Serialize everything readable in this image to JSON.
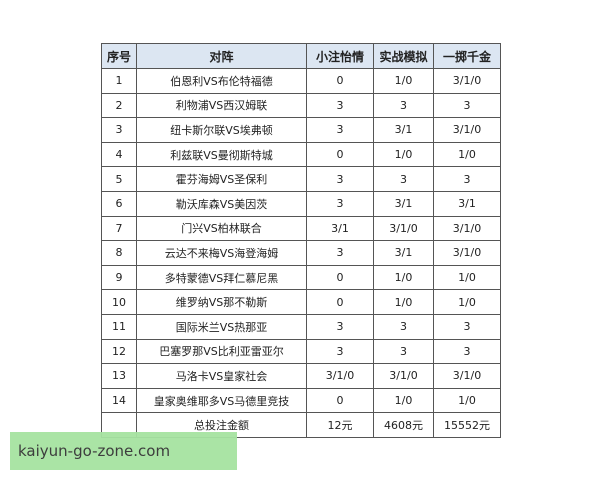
{
  "headers": [
    "序号",
    "对阵",
    "小注怡情",
    "实战模拟",
    "一掷千金"
  ],
  "rows": [
    [
      "1",
      "伯恩利VS布伦特福德",
      "0",
      "1/0",
      "3/1/0"
    ],
    [
      "2",
      "利物浦VS西汉姆联",
      "3",
      "3",
      "3"
    ],
    [
      "3",
      "纽卡斯尔联VS埃弗顿",
      "3",
      "3/1",
      "3/1/0"
    ],
    [
      "4",
      "利兹联VS曼彻斯特城",
      "0",
      "1/0",
      "1/0"
    ],
    [
      "5",
      "霍芬海姆VS圣保利",
      "3",
      "3",
      "3"
    ],
    [
      "6",
      "勒沃库森VS美因茨",
      "3",
      "3/1",
      "3/1"
    ],
    [
      "7",
      "门兴VS柏林联合",
      "3/1",
      "3/1/0",
      "3/1/0"
    ],
    [
      "8",
      "云达不来梅VS海登海姆",
      "3",
      "3/1",
      "3/1/0"
    ],
    [
      "9",
      "多特蒙德VS拜仁慕尼黑",
      "0",
      "1/0",
      "1/0"
    ],
    [
      "10",
      "维罗纳VS那不勒斯",
      "0",
      "1/0",
      "1/0"
    ],
    [
      "11",
      "国际米兰VS热那亚",
      "3",
      "3",
      "3"
    ],
    [
      "12",
      "巴塞罗那VS比利亚雷亚尔",
      "3",
      "3",
      "3"
    ],
    [
      "13",
      "马洛卡VS皇家社会",
      "3/1/0",
      "3/1/0",
      "3/1/0"
    ],
    [
      "14",
      "皇家奥维耶多VS马德里竞技",
      "0",
      "1/0",
      "1/0"
    ]
  ],
  "total": {
    "label": "总投注金额",
    "values": [
      "12元",
      "4608元",
      "15552元"
    ]
  },
  "watermark": "kaiyun-go-zone.com"
}
